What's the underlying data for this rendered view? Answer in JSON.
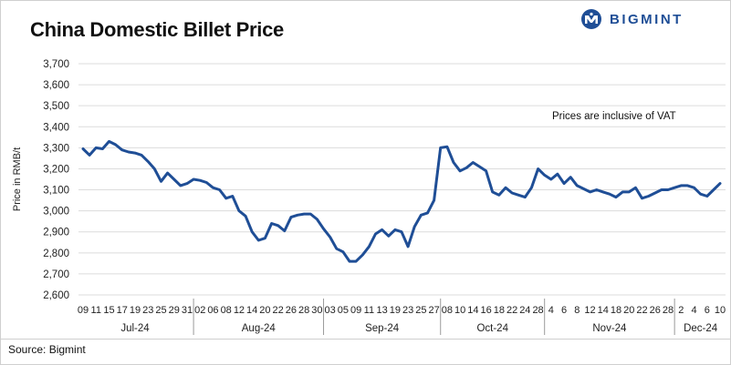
{
  "title": "China Domestic Billet Price",
  "logo": {
    "text": "BIGMINT",
    "icon": "bigmint-logo-icon",
    "color": "#1f4e96"
  },
  "source": "Source: Bigmint",
  "chart_data": {
    "type": "line",
    "title": "China Domestic Billet Price",
    "ylabel": "Price in RMB/t",
    "xlabel": "",
    "ylim": [
      2600,
      3700
    ],
    "yticks": [
      2600,
      2700,
      2800,
      2900,
      3000,
      3100,
      3200,
      3300,
      3400,
      3500,
      3600,
      3700
    ],
    "grid": true,
    "line_color": "#1f4e96",
    "annotation": "Prices are inclusive of VAT",
    "x_day_labels": [
      "09",
      "11",
      "15",
      "17",
      "19",
      "23",
      "25",
      "29",
      "31",
      "02",
      "06",
      "08",
      "12",
      "14",
      "20",
      "22",
      "26",
      "28",
      "30",
      "03",
      "05",
      "09",
      "11",
      "13",
      "19",
      "23",
      "25",
      "27",
      "08",
      "10",
      "14",
      "16",
      "18",
      "22",
      "24",
      "28",
      "4",
      "6",
      "8",
      "12",
      "14",
      "18",
      "20",
      "22",
      "26",
      "28",
      "2",
      "4",
      "6",
      "10"
    ],
    "months": [
      {
        "label": "Jul-24",
        "first_index": 0,
        "last_index": 8
      },
      {
        "label": "Aug-24",
        "first_index": 9,
        "last_index": 18
      },
      {
        "label": "Sep-24",
        "first_index": 19,
        "last_index": 27
      },
      {
        "label": "Oct-24",
        "first_index": 28,
        "last_index": 35
      },
      {
        "label": "Nov-24",
        "first_index": 36,
        "last_index": 45
      },
      {
        "label": "Dec-24",
        "first_index": 46,
        "last_index": 49
      }
    ],
    "series": [
      {
        "values": [
          3295,
          3265,
          3300,
          3295,
          3330,
          3315,
          3290,
          3280,
          3275,
          3265,
          3235,
          3200,
          3140,
          3180,
          3150,
          3120,
          3130,
          3150,
          3145,
          3135,
          3110,
          3100,
          3060,
          3070,
          3000,
          2975,
          2900,
          2860,
          2870,
          2940,
          2930,
          2905,
          2970,
          2980,
          2985,
          2985,
          2960,
          2915,
          2875,
          2820,
          2805,
          2760,
          2760,
          2790,
          2830,
          2890,
          2910,
          2880,
          2910,
          2900,
          2830,
          2925,
          2980,
          2990,
          3050,
          3300,
          3305,
          3230,
          3190,
          3205,
          3230,
          3210,
          3190,
          3090,
          3075,
          3110,
          3085,
          3075,
          3065,
          3110,
          3200,
          3170,
          3150,
          3175,
          3130,
          3160,
          3120,
          3105,
          3090,
          3100,
          3090,
          3080,
          3065,
          3090,
          3090,
          3110,
          3060,
          3070,
          3085,
          3100,
          3100,
          3110,
          3120,
          3120,
          3110,
          3080,
          3070,
          3100,
          3130
        ]
      }
    ]
  }
}
